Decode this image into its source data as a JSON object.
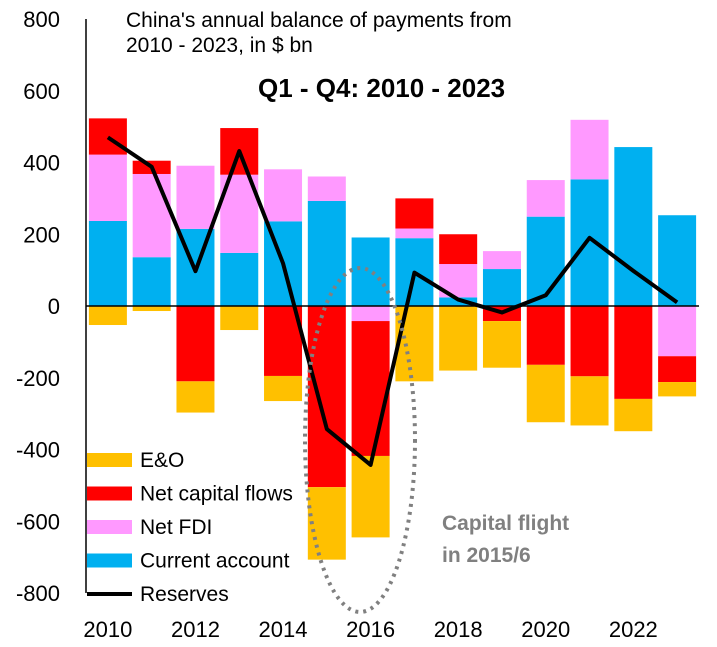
{
  "chart_data": {
    "type": "bar",
    "title_line1": "China's annual balance of payments from",
    "title_line2": "2010 - 2023, in $ bn",
    "subtitle": "Q1 - Q4: 2010 - 2023",
    "annotation_line1": "Capital flight",
    "annotation_line2": "in 2015/6",
    "x": [
      2010,
      2011,
      2012,
      2013,
      2014,
      2015,
      2016,
      2017,
      2018,
      2019,
      2020,
      2021,
      2022,
      2023
    ],
    "x_tick_labels": [
      "2010",
      "2012",
      "2014",
      "2016",
      "2018",
      "2020",
      "2022"
    ],
    "x_tick_values": [
      2010,
      2012,
      2014,
      2016,
      2018,
      2020,
      2022
    ],
    "y_tick_labels": [
      "800",
      "600",
      "400",
      "200",
      "0",
      "-200",
      "-400",
      "-600",
      "-800"
    ],
    "y_tick_values": [
      800,
      600,
      400,
      200,
      0,
      -200,
      -400,
      -600,
      -800
    ],
    "ylim": [
      -800,
      800
    ],
    "legend_position": "bottom-left",
    "series": [
      {
        "name": "Current account",
        "kind": "bar",
        "color": "#00B0F0",
        "values": [
          237,
          136,
          215,
          148,
          236,
          293,
          191,
          189,
          24,
          103,
          249,
          353,
          443,
          253
        ]
      },
      {
        "name": "Net FDI",
        "kind": "bar",
        "color": "#FF99FF",
        "values": [
          185,
          232,
          176,
          218,
          145,
          68,
          -42,
          27,
          93,
          50,
          102,
          166,
          0,
          -140
        ]
      },
      {
        "name": "Net capital flows",
        "kind": "bar",
        "color": "#FF0000",
        "values": [
          101,
          37,
          -210,
          130,
          -195,
          -505,
          -376,
          84,
          83,
          -42,
          -164,
          -196,
          -259,
          -72
        ]
      },
      {
        "name": "E&O",
        "kind": "bar",
        "color": "#FFC000",
        "values": [
          -53,
          -14,
          -87,
          -67,
          -70,
          -202,
          -227,
          -210,
          -180,
          -130,
          -160,
          -137,
          -90,
          -40
        ]
      },
      {
        "name": "Reserves",
        "kind": "line",
        "color": "#000000",
        "values": [
          470,
          388,
          97,
          432,
          119,
          -343,
          -443,
          93,
          18,
          -18,
          30,
          190,
          98,
          10
        ]
      }
    ]
  }
}
